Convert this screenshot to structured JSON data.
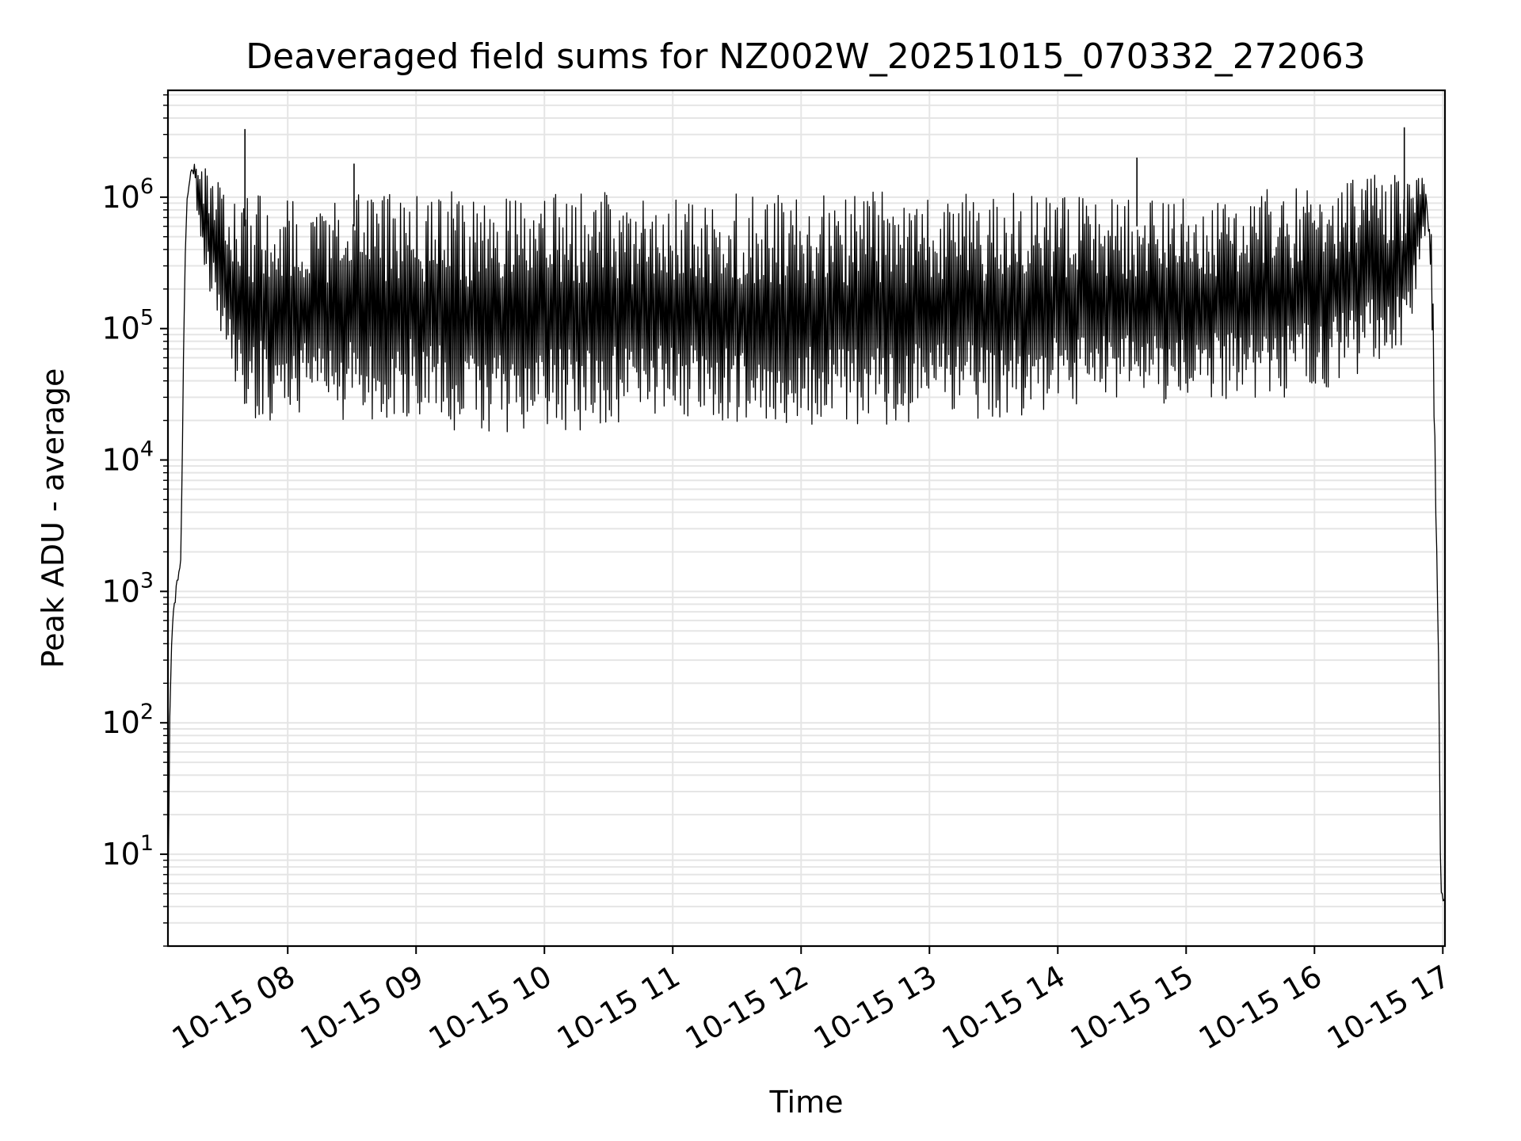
{
  "chart_data": {
    "type": "line",
    "title": "Deaveraged field sums for NZ002W_20251015_070332_272063",
    "xlabel": "Time",
    "ylabel": "Peak ADU - average",
    "y_scale": "log",
    "grid": true,
    "line_color": "#000000",
    "grid_color": "#e5e5e5",
    "xlim": [
      "2025-10-15 07:04",
      "2025-10-15 17:01"
    ],
    "ylim": [
      2,
      6500000
    ],
    "x_ticks": [
      {
        "value": "2025-10-15 08:00",
        "label": "10-15 08"
      },
      {
        "value": "2025-10-15 09:00",
        "label": "10-15 09"
      },
      {
        "value": "2025-10-15 10:00",
        "label": "10-15 10"
      },
      {
        "value": "2025-10-15 11:00",
        "label": "10-15 11"
      },
      {
        "value": "2025-10-15 12:00",
        "label": "10-15 12"
      },
      {
        "value": "2025-10-15 13:00",
        "label": "10-15 13"
      },
      {
        "value": "2025-10-15 14:00",
        "label": "10-15 14"
      },
      {
        "value": "2025-10-15 15:00",
        "label": "10-15 15"
      },
      {
        "value": "2025-10-15 16:00",
        "label": "10-15 16"
      },
      {
        "value": "2025-10-15 17:00",
        "label": "10-15 17"
      }
    ],
    "y_ticks": [
      {
        "value": 10,
        "base": "10",
        "exp": "1"
      },
      {
        "value": 100,
        "base": "10",
        "exp": "2"
      },
      {
        "value": 1000,
        "base": "10",
        "exp": "3"
      },
      {
        "value": 10000,
        "base": "10",
        "exp": "4"
      },
      {
        "value": 100000,
        "base": "10",
        "exp": "5"
      },
      {
        "value": 1000000,
        "base": "10",
        "exp": "6"
      }
    ],
    "series": [
      {
        "x": [
          "2025-10-15 07:04",
          "2025-10-15 07:05",
          "2025-10-15 07:06",
          "2025-10-15 07:08",
          "2025-10-15 07:10",
          "2025-10-15 07:12",
          "2025-10-15 07:13",
          "2025-10-15 07:14",
          "2025-10-15 07:15",
          "2025-10-15 07:16",
          "2025-10-15 07:18",
          "2025-10-15 07:20",
          "2025-10-15 07:22",
          "2025-10-15 07:24",
          "2025-10-15 07:27",
          "2025-10-15 07:30",
          "2025-10-15 07:33",
          "2025-10-15 07:36",
          "2025-10-15 07:40",
          "2025-10-15 07:42",
          "2025-10-15 07:44",
          "2025-10-15 07:46",
          "2025-10-15 07:50",
          "2025-10-15 07:55",
          "2025-10-15 08:05",
          "2025-10-15 08:20",
          "2025-10-15 08:40",
          "2025-10-15 09:00",
          "2025-10-15 09:20",
          "2025-10-15 09:40",
          "2025-10-15 10:00",
          "2025-10-15 10:30",
          "2025-10-15 11:00",
          "2025-10-15 11:30",
          "2025-10-15 12:00",
          "2025-10-15 12:30",
          "2025-10-15 13:00",
          "2025-10-15 13:30",
          "2025-10-15 14:00",
          "2025-10-15 14:30",
          "2025-10-15 15:00",
          "2025-10-15 15:30",
          "2025-10-15 16:00",
          "2025-10-15 16:20",
          "2025-10-15 16:40",
          "2025-10-15 16:47",
          "2025-10-15 16:50",
          "2025-10-15 16:53",
          "2025-10-15 16:55",
          "2025-10-15 16:57",
          "2025-10-15 16:58",
          "2025-10-15 16:59",
          "2025-10-15 17:01"
        ],
        "lower": [
          4,
          150,
          500,
          1000,
          1600,
          300000,
          800000,
          1200000,
          1400000,
          1500000,
          500000,
          400000,
          200000,
          150000,
          120000,
          80000,
          50000,
          30000,
          25000,
          22000,
          20000,
          20000,
          20000,
          20000,
          20000,
          20000,
          20000,
          22000,
          16000,
          15000,
          16000,
          17000,
          18000,
          18000,
          17000,
          18000,
          20000,
          21000,
          23000,
          27000,
          26000,
          25000,
          32000,
          45000,
          70000,
          150000,
          400000,
          600000,
          100000,
          2000,
          300,
          5,
          4
        ],
        "upper": [
          6,
          200,
          600,
          1200,
          1800,
          500000,
          1100000,
          1500000,
          1700000,
          1800000,
          1700000,
          1700000,
          1700000,
          1600000,
          1500000,
          1200000,
          1100000,
          1000000,
          1050000,
          1100000,
          1100000,
          1100000,
          1100000,
          1100000,
          1100000,
          1100000,
          1100000,
          1100000,
          1100000,
          1100000,
          1100000,
          1100000,
          1100000,
          1100000,
          1100000,
          1100000,
          1100000,
          1100000,
          1100000,
          1000000,
          1000000,
          1100000,
          1300000,
          1450000,
          1500000,
          1600000,
          1500000,
          1000000,
          600000,
          3000,
          400,
          6,
          5
        ]
      }
    ],
    "spikes": [
      {
        "x": "2025-10-15 07:40",
        "y": 3300000
      },
      {
        "x": "2025-10-15 08:31",
        "y": 1800000
      },
      {
        "x": "2025-10-15 14:37",
        "y": 2000000
      },
      {
        "x": "2025-10-15 16:42",
        "y": 3400000
      }
    ]
  }
}
